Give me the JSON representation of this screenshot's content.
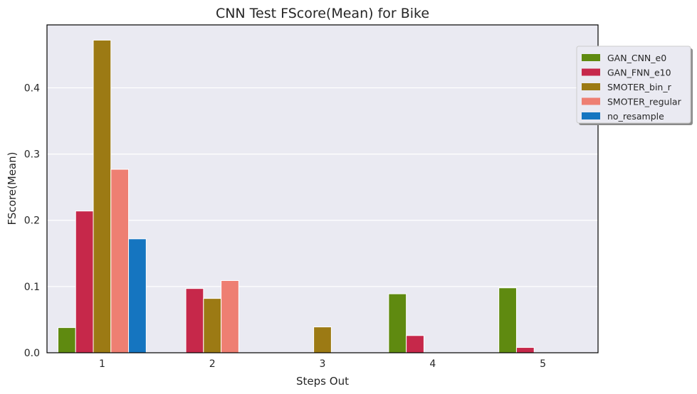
{
  "chart_data": {
    "type": "bar",
    "title": "CNN Test FScore(Mean) for Bike",
    "xlabel": "Steps Out",
    "ylabel": "FScore(Mean)",
    "categories": [
      "1",
      "2",
      "3",
      "4",
      "5"
    ],
    "ylim": [
      0,
      0.495
    ],
    "yticks": [
      "0.0",
      "0.1",
      "0.2",
      "0.3",
      "0.4"
    ],
    "grid": true,
    "legend_position": "upper right, outside plot",
    "series": [
      {
        "name": "GAN_CNN_e0",
        "color": "#5f8a10",
        "values": [
          0.038,
          0,
          0,
          0.089,
          0.098
        ]
      },
      {
        "name": "GAN_FNN_e10",
        "color": "#c6284a",
        "values": [
          0.214,
          0.097,
          0,
          0.026,
          0.008
        ]
      },
      {
        "name": "SMOTER_bin_r",
        "color": "#9c7a14",
        "values": [
          0.472,
          0.082,
          0.039,
          0,
          0
        ]
      },
      {
        "name": "SMOTER_regular",
        "color": "#ee7f72",
        "values": [
          0.277,
          0.109,
          0,
          0,
          0
        ]
      },
      {
        "name": "no_resample",
        "color": "#1575c0",
        "values": [
          0.172,
          0,
          0,
          0,
          0
        ]
      }
    ]
  }
}
